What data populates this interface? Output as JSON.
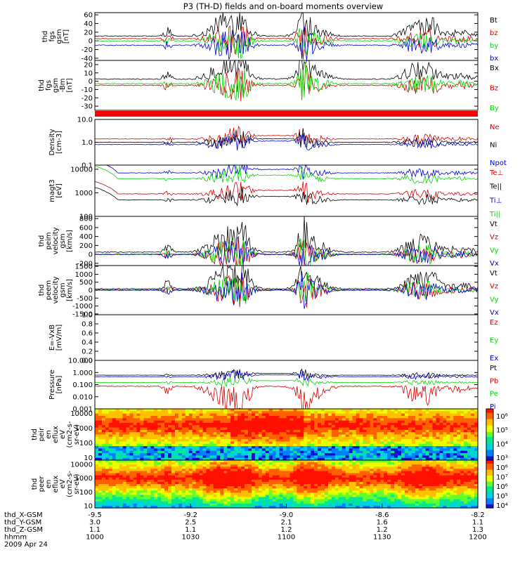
{
  "title": "P3 (TH-D) fields and on-board moments overview",
  "colors": {
    "black": "#000000",
    "red": "#d40000",
    "green": "#00d800",
    "blue": "#0000d0",
    "flag": "#ff0000"
  },
  "chart_data": [
    {
      "id": "p1",
      "type": "line",
      "ylabel": [
        "thd",
        "fgs",
        "gsm",
        "[nT]"
      ],
      "yticks": [
        "60",
        "40",
        "20",
        "0",
        "-20",
        "-40"
      ],
      "ytick_values": [
        60,
        40,
        20,
        0,
        -20,
        -40
      ],
      "ylim": [
        -45,
        65
      ],
      "series": [
        {
          "name": "Bt",
          "color": "black",
          "base": 10
        },
        {
          "name": "bz",
          "color": "red",
          "base": 5
        },
        {
          "name": "by",
          "color": "green",
          "base": 0
        },
        {
          "name": "bx",
          "color": "blue",
          "base": -10
        }
      ]
    },
    {
      "id": "p2",
      "type": "line",
      "ylabel": [
        "thd",
        "fgs",
        "gsm",
        "-Bm",
        "[nT]"
      ],
      "yticks": [
        "20",
        "10",
        "0",
        "-10",
        "-20",
        "-30"
      ],
      "ytick_values": [
        20,
        10,
        0,
        -10,
        -20,
        -30
      ],
      "ylim": [
        -35,
        25
      ],
      "series": [
        {
          "name": "Bx",
          "color": "black",
          "base": 2
        },
        {
          "name": "Bz",
          "color": "red",
          "base": -5
        },
        {
          "name": "By",
          "color": "green",
          "base": -3
        }
      ]
    },
    {
      "id": "p3",
      "type": "line",
      "ylabel": [
        "Density",
        "[cm-3]"
      ],
      "yticks": [
        "10.0",
        "1.0",
        "0.1"
      ],
      "ytick_values": [
        10,
        1,
        0.1
      ],
      "ylim": [
        0.1,
        10
      ],
      "log": true,
      "series": [
        {
          "name": "Ne",
          "color": "red",
          "base": 1.4
        },
        {
          "name": "Ni",
          "color": "black",
          "base": 1.0
        },
        {
          "name": "Npot",
          "color": "blue",
          "base": 0.8
        }
      ]
    },
    {
      "id": "p4",
      "type": "line",
      "ylabel": [
        "magt3",
        "[eV]"
      ],
      "yticks": [
        "10000",
        "1000",
        "100"
      ],
      "ytick_values": [
        10000,
        1000,
        100
      ],
      "ylim": [
        100,
        15000
      ],
      "log": true,
      "series": [
        {
          "name": "Te⊥",
          "color": "red",
          "base": 900
        },
        {
          "name": "Te||",
          "color": "black",
          "base": 500
        },
        {
          "name": "Ti⊥",
          "color": "blue",
          "base": 7000
        },
        {
          "name": "Ti||",
          "color": "green",
          "base": 4000
        }
      ]
    },
    {
      "id": "p5",
      "type": "line",
      "ylabel": [
        "thd",
        "peim",
        "velocity",
        "gsm",
        "[km/s]"
      ],
      "yticks": [
        "800",
        "600",
        "400",
        "200",
        "0",
        "-200"
      ],
      "ytick_values": [
        800,
        600,
        400,
        200,
        0,
        -200
      ],
      "ylim": [
        -250,
        850
      ],
      "series": [
        {
          "name": "Vt",
          "color": "black",
          "base": 40
        },
        {
          "name": "Vz",
          "color": "red",
          "base": 0
        },
        {
          "name": "Vy",
          "color": "green",
          "base": 0
        },
        {
          "name": "Vx",
          "color": "blue",
          "base": 0
        }
      ]
    },
    {
      "id": "p6",
      "type": "line",
      "ylabel": [
        "thd",
        "peem",
        "velocity",
        "gsm",
        "[km/s]"
      ],
      "yticks": [
        "1500",
        "1000",
        "500",
        "0",
        "-500",
        "-1000",
        "-1500"
      ],
      "ytick_values": [
        1500,
        1000,
        500,
        0,
        -500,
        -1000,
        -1500
      ],
      "ylim": [
        -1550,
        1550
      ],
      "series": [
        {
          "name": "Vt",
          "color": "black",
          "base": 50
        },
        {
          "name": "Vz",
          "color": "red",
          "base": 0
        },
        {
          "name": "Vy",
          "color": "green",
          "base": 0
        },
        {
          "name": "Vx",
          "color": "blue",
          "base": 0
        }
      ]
    },
    {
      "id": "p7",
      "type": "line",
      "ylabel": [
        "E=-VxB",
        "[mV/m]"
      ],
      "yticks": [
        "1.0",
        "0.8",
        "0.6",
        "0.4",
        "0.2",
        "0.0"
      ],
      "ytick_values": [
        1,
        0.8,
        0.6,
        0.4,
        0.2,
        0
      ],
      "ylim": [
        0,
        1
      ],
      "series": [
        {
          "name": "Ez",
          "color": "red"
        },
        {
          "name": "Ey",
          "color": "green"
        },
        {
          "name": "Ex",
          "color": "blue"
        }
      ]
    },
    {
      "id": "p8",
      "type": "line",
      "ylabel": [
        "Pressure",
        "[nPa]"
      ],
      "yticks": [
        "10.000",
        "1.000",
        "0.100",
        "0.010",
        "0.001"
      ],
      "ytick_values": [
        10,
        1,
        0.1,
        0.01,
        0.001
      ],
      "ylim": [
        0.001,
        10
      ],
      "log": true,
      "series": [
        {
          "name": "Pt",
          "color": "black",
          "base": 0.6
        },
        {
          "name": "Pb",
          "color": "red",
          "base": 0.08
        },
        {
          "name": "Pe",
          "color": "green",
          "base": 0.15
        },
        {
          "name": "Pi",
          "color": "blue",
          "base": 0.45
        }
      ]
    },
    {
      "id": "p9",
      "type": "heatmap",
      "ylabel": [
        "thd",
        "peir",
        "en",
        "eflux",
        "eV",
        "(cm2-s-",
        "sr-eV)"
      ],
      "yticks": [
        "10000",
        "1000",
        "100",
        "10"
      ],
      "ytick_values": [
        10000,
        1000,
        100,
        10
      ],
      "ylim": [
        7,
        20000
      ],
      "log": true,
      "colorbar": [
        "10⁶",
        "10⁵",
        "10⁴",
        "10³"
      ]
    },
    {
      "id": "p10",
      "type": "heatmap",
      "ylabel": [
        "thd",
        "peer",
        "en",
        "eflux",
        "eV",
        "(cm2-s-",
        "sr-eV)"
      ],
      "yticks": [
        "10000",
        "1000",
        "100",
        "10"
      ],
      "ytick_values": [
        10000,
        1000,
        100,
        10
      ],
      "ylim": [
        7,
        20000
      ],
      "log": true,
      "colorbar": [
        "10⁸",
        "10⁷",
        "10⁶",
        "10⁵",
        "10⁴"
      ]
    }
  ],
  "x_axis": {
    "labels": [
      "thd_X-GSM",
      "thd_Y-GSM",
      "thd_Z-GSM",
      "hhmm",
      "2009 Apr 24"
    ],
    "columns": [
      [
        "-9.5",
        "3.0",
        "1.1",
        "1000"
      ],
      [
        "-9.2",
        "2.5",
        "1.1",
        "1030"
      ],
      [
        "-9.0",
        "2.1",
        "1.2",
        "1100"
      ],
      [
        "-8.6",
        "1.6",
        "1.2",
        "1130"
      ],
      [
        "-8.2",
        "1.1",
        "1.3",
        "1200"
      ]
    ]
  }
}
